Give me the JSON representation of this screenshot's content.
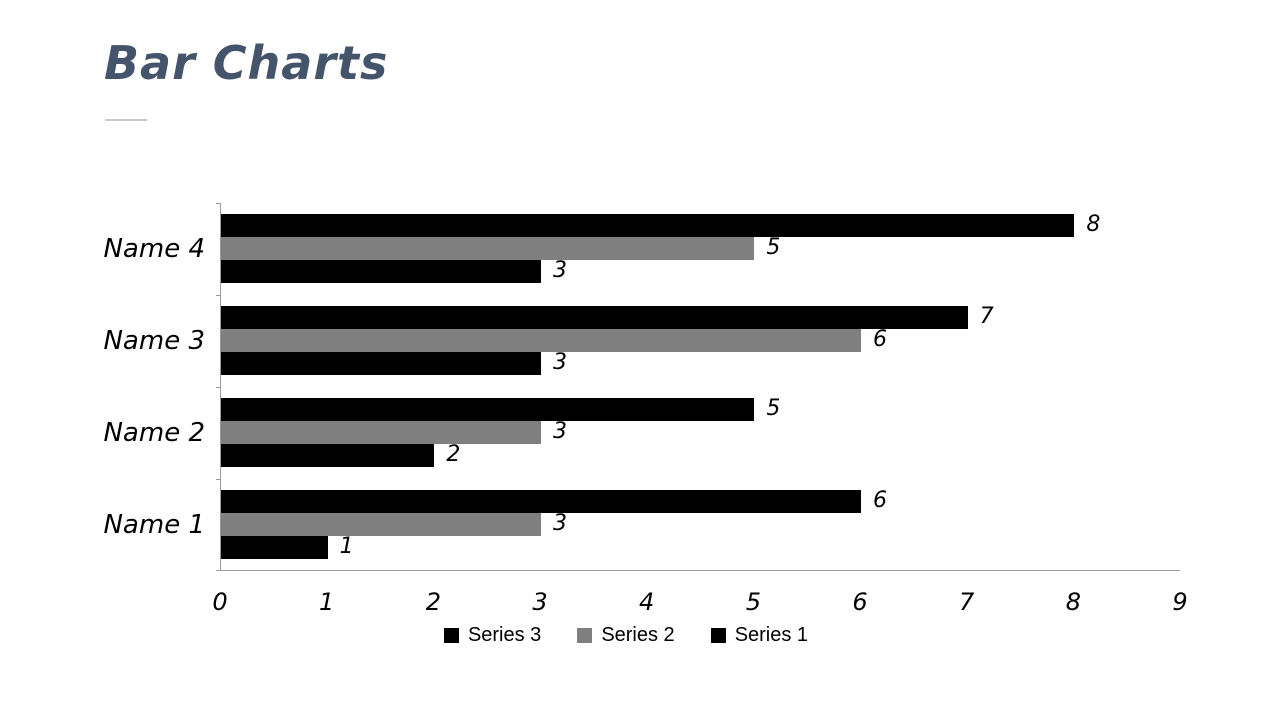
{
  "slide": {
    "title": "Bar Charts",
    "title_color": "#44546A",
    "background": "#FFFFFF",
    "accent_line_color": "#C8C8C8"
  },
  "chart_data": {
    "type": "bar",
    "orientation": "horizontal",
    "title": "",
    "xlabel": "",
    "ylabel": "",
    "categories": [
      "Name 4",
      "Name 3",
      "Name 2",
      "Name 1"
    ],
    "series": [
      {
        "name": "Series 3",
        "color": "#000000",
        "values": [
          8,
          7,
          5,
          6
        ]
      },
      {
        "name": "Series 2",
        "color": "#7F7F7F",
        "values": [
          5,
          6,
          3,
          3
        ]
      },
      {
        "name": "Series 1",
        "color": "#000000",
        "values": [
          3,
          3,
          2,
          1
        ]
      }
    ],
    "x_ticks": [
      "0",
      "1",
      "2",
      "3",
      "4",
      "5",
      "6",
      "7",
      "8",
      "9"
    ],
    "xlim": [
      0,
      9
    ],
    "grid": false,
    "data_labels": true,
    "legend_position": "bottom",
    "axis_color": "#9B9B9B"
  }
}
